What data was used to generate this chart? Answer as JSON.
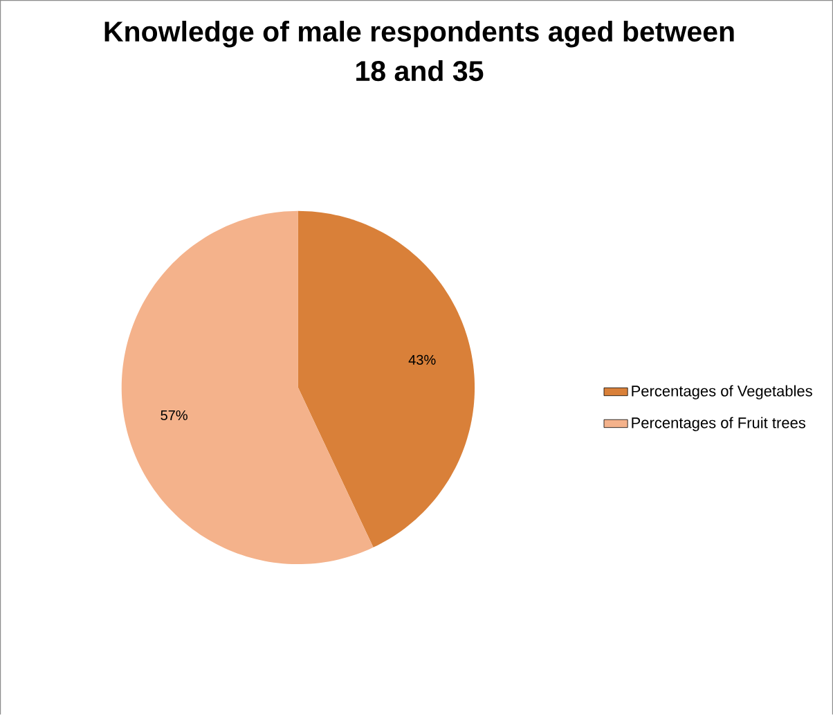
{
  "chart_data": {
    "type": "pie",
    "title": "Knowledge of male respondents aged between 18 and 35",
    "categories": [
      "Percentages of Vegetables",
      "Percentages of Fruit trees"
    ],
    "values": [
      43,
      57
    ],
    "colors": [
      "#d98039",
      "#f4b28b"
    ],
    "value_labels": [
      "43%",
      "57%"
    ],
    "legend": "right"
  }
}
